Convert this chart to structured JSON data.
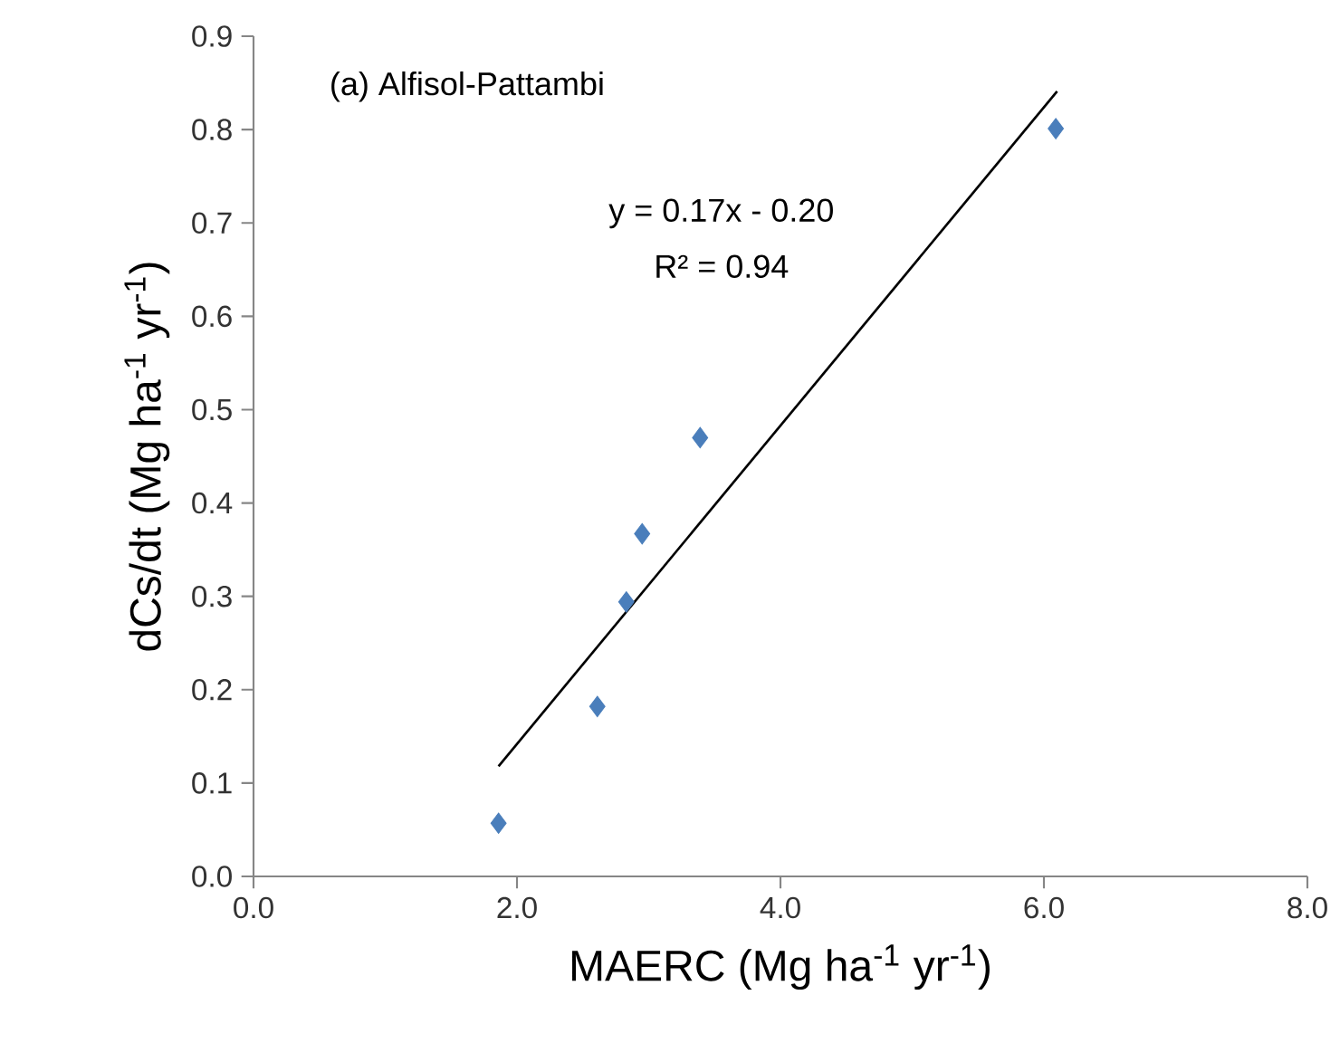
{
  "chart_data": {
    "type": "scatter",
    "xlabel": "MAERC (Mg ha$^{-1}$ yr$^{-1}$)",
    "ylabel": "dCs/dt (Mg ha$^{-1}$ yr$^{-1}$)",
    "annotations": [
      "(a) Alfisol-Pattambi",
      "y = 0.17x - 0.20",
      "R² = 0.94"
    ],
    "series": [
      {
        "color": "#4a7ebb",
        "marker": "diamond",
        "x": [
          1.86,
          2.61,
          2.83,
          2.95,
          3.39,
          6.09
        ],
        "values": [
          0.057,
          0.182,
          0.294,
          0.367,
          0.47,
          0.801
        ]
      },
      {
        "type": "line",
        "color": "#000000",
        "x": [
          1.86,
          6.1
        ],
        "values": [
          0.118,
          0.841
        ]
      }
    ],
    "xlim": [
      0,
      8
    ],
    "xticks": [
      {
        "value": 0,
        "label": "0.0"
      },
      {
        "value": 2,
        "label": "2.0"
      },
      {
        "value": 4,
        "label": "4.0"
      },
      {
        "value": 6,
        "label": "6.0"
      },
      {
        "value": 8,
        "label": "8.0"
      }
    ],
    "ylim": [
      0,
      0.9
    ],
    "yticks": [
      {
        "value": 0,
        "label": "0.0"
      },
      {
        "value": 0.1,
        "label": "0.1"
      },
      {
        "value": 0.2,
        "label": "0.2"
      },
      {
        "value": 0.3,
        "label": "0.3"
      },
      {
        "value": 0.4,
        "label": "0.4"
      },
      {
        "value": 0.5,
        "label": "0.5"
      },
      {
        "value": 0.6,
        "label": "0.6"
      },
      {
        "value": 0.7,
        "label": "0.7"
      },
      {
        "value": 0.8,
        "label": "0.8"
      },
      {
        "value": 0.9,
        "label": "0.9"
      }
    ],
    "grid": false
  }
}
